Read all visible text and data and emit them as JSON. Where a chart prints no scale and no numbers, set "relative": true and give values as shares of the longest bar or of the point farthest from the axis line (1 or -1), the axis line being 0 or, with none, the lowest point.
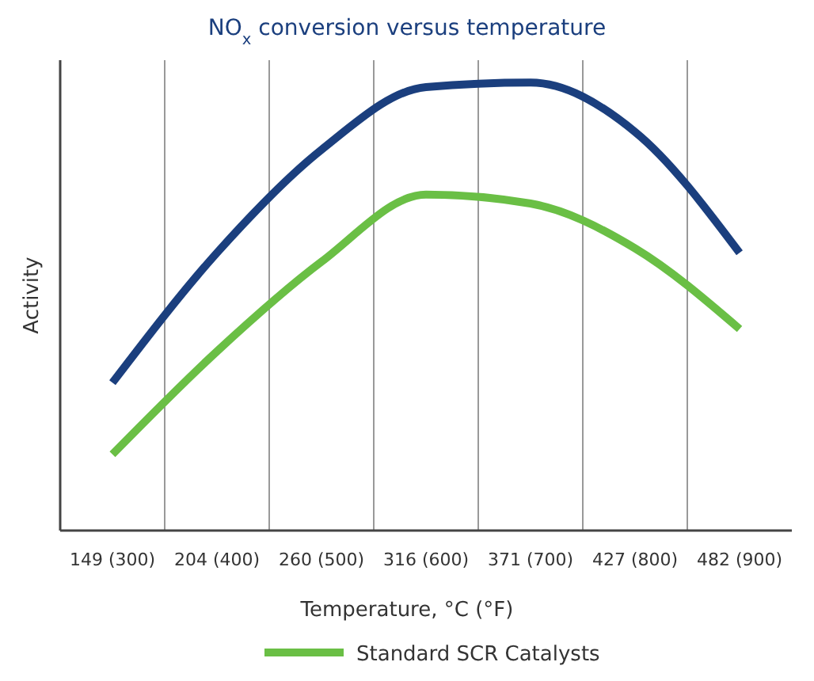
{
  "chart_data": {
    "type": "line",
    "title": "NO$_{x}$ conversion versus temperature",
    "xlabel": "Temperature, °C (°F)",
    "ylabel": "Activity",
    "categories": [
      "149 (300)",
      "204 (400)",
      "260 (500)",
      "316 (600)",
      "371 (700)",
      "427 (800)",
      "482 (900)"
    ],
    "relative": true,
    "grid": "x",
    "legend": "bottom",
    "line_style": "solid",
    "marker": "none",
    "series": [
      {
        "color": "#1b3f7e",
        "values": [
          0.33,
          0.62,
          0.85,
          0.99,
          1.0,
          0.89,
          0.62
        ]
      },
      {
        "name": "Standard SCR Catalysts",
        "color": "#6abf45",
        "values": [
          0.17,
          0.4,
          0.6,
          0.75,
          0.73,
          0.63,
          0.45
        ]
      }
    ]
  }
}
